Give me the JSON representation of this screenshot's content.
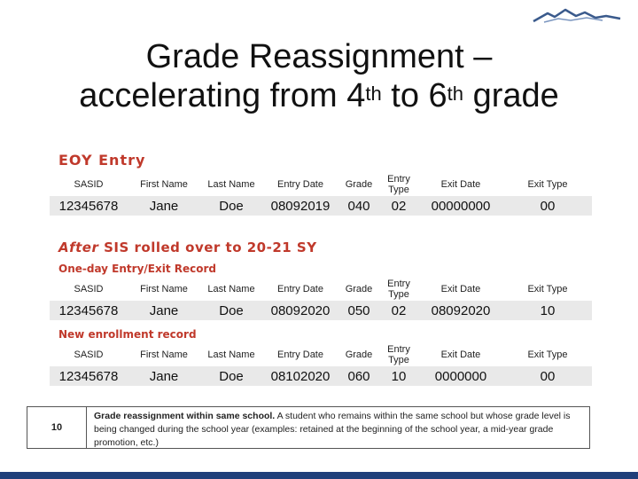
{
  "slide": {
    "title_line1": "Grade Reassignment –",
    "title_line2_part1": "accelerating from 4",
    "title_sup1": "th",
    "title_line2_part2": " to 6",
    "title_sup2": "th",
    "title_line2_part3": " grade"
  },
  "sections": {
    "eoy_label": "EOY Entry",
    "after_label_em": "After",
    "after_label_rest": " SIS rolled over to 20-21 SY",
    "one_day_label": "One-day Entry/Exit Record",
    "new_enrollment_label": "New enrollment record"
  },
  "columns": [
    "SASID",
    "First Name",
    "Last Name",
    "Entry Date",
    "Grade",
    "Entry Type",
    "Exit Date",
    "Exit Type"
  ],
  "records": [
    {
      "sasid": "12345678",
      "first": "Jane",
      "last": "Doe",
      "entry_date": "08092019",
      "grade": "040",
      "entry_type": "02",
      "exit_date": "00000000",
      "exit_type": "00"
    },
    {
      "sasid": "12345678",
      "first": "Jane",
      "last": "Doe",
      "entry_date": "08092020",
      "grade": "050",
      "entry_type": "02",
      "exit_date": "08092020",
      "exit_type": "10"
    },
    {
      "sasid": "12345678",
      "first": "Jane",
      "last": "Doe",
      "entry_date": "08102020",
      "grade": "060",
      "entry_type": "10",
      "exit_date": "0000000",
      "exit_type": "00"
    }
  ],
  "definition": {
    "number": "10",
    "bold_text": "Grade reassignment within same school.",
    "body_text": " A student who remains within the same school but whose grade level is being changed during the school year (examples: retained at the beginning of the school year, a mid-year grade promotion, etc.)"
  },
  "colors": {
    "section_label": "#c0392b",
    "row_fill": "#e9e9e9",
    "footer_bar": "#1f3f7a",
    "logo": "#3a5a8c"
  },
  "icons": {
    "logo": "mountain-logo"
  }
}
